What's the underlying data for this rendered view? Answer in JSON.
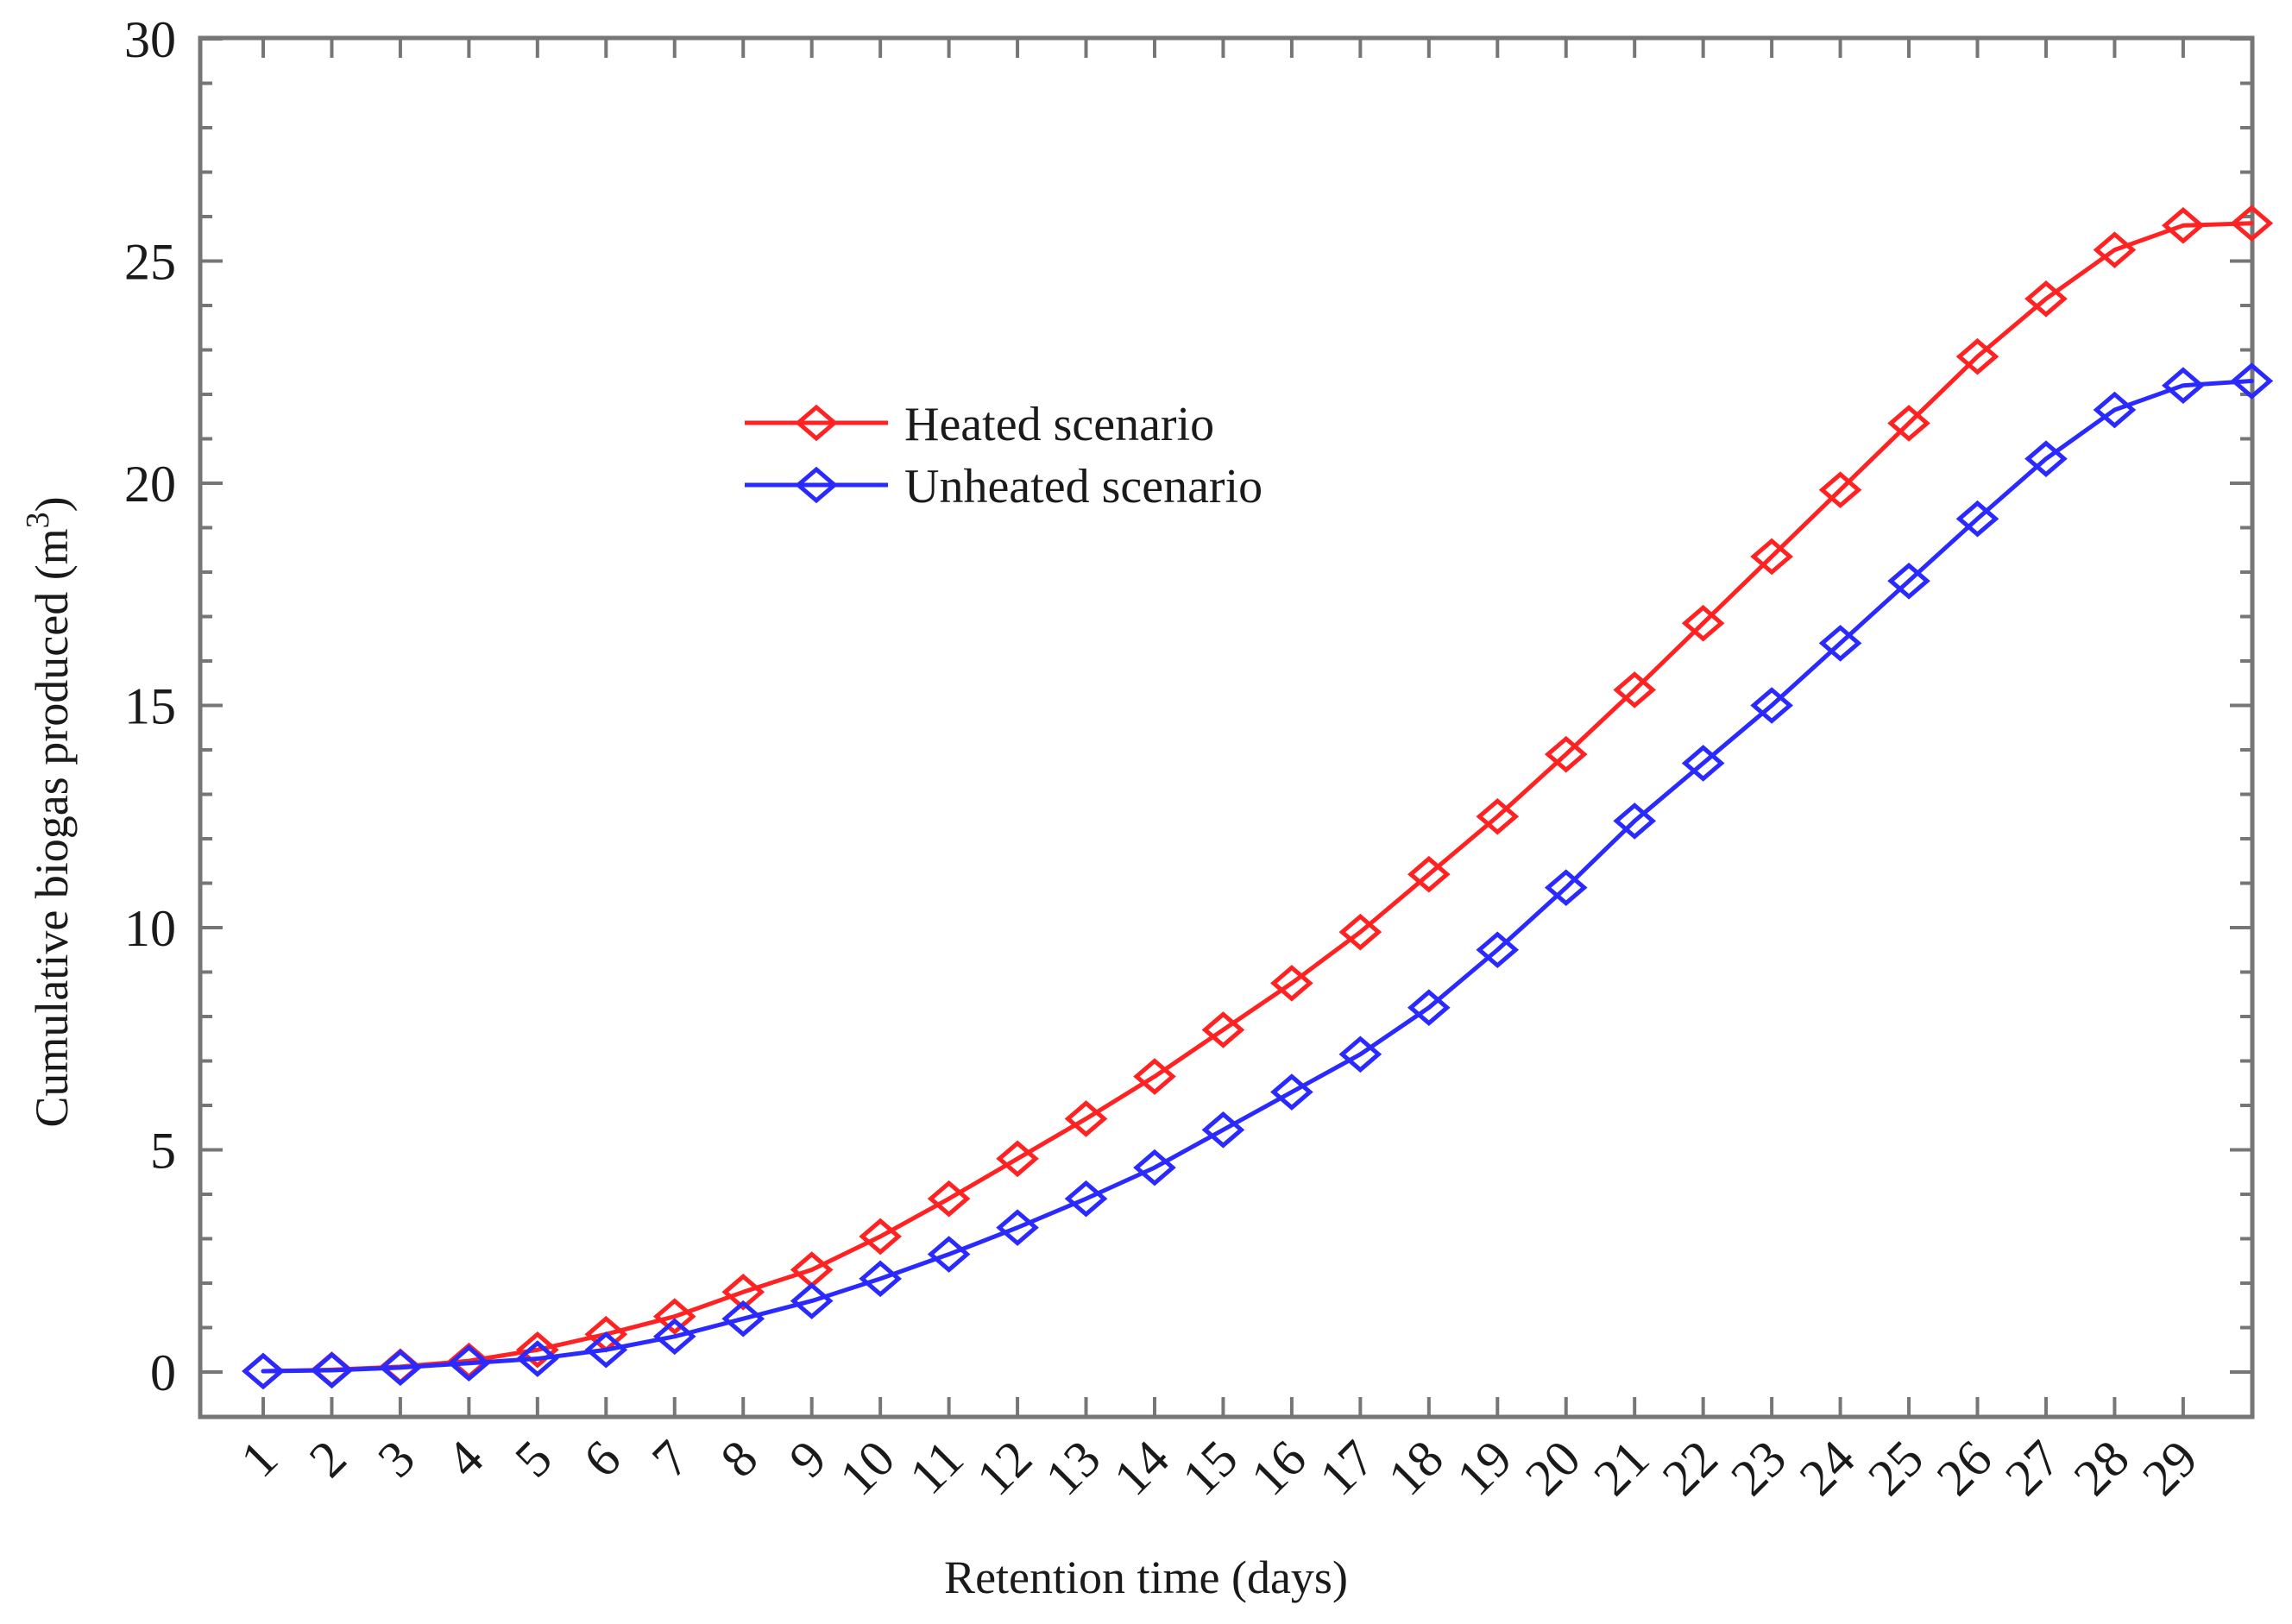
{
  "chart_data": {
    "type": "line",
    "title": "",
    "xlabel": "Retention time (days)",
    "ylabel_prefix": "Cumulative biogas produced (m",
    "ylabel_superscript": "3",
    "ylabel_suffix": ")",
    "x": [
      1,
      2,
      3,
      4,
      5,
      6,
      7,
      8,
      9,
      10,
      11,
      12,
      13,
      14,
      15,
      16,
      17,
      18,
      19,
      20,
      21,
      22,
      23,
      24,
      25,
      26,
      27,
      28,
      29,
      30
    ],
    "xtick_labels": [
      "1",
      "2",
      "3",
      "4",
      "5",
      "6",
      "7",
      "8",
      "9",
      "10",
      "11",
      "12",
      "13",
      "14",
      "15",
      "16",
      "17",
      "18",
      "19",
      "20",
      "21",
      "22",
      "23",
      "24",
      "25",
      "26",
      "27",
      "28",
      "29"
    ],
    "yticks": [
      0,
      5,
      10,
      15,
      20,
      25,
      30
    ],
    "ylim": [
      -1,
      30
    ],
    "xlim": [
      0.15,
      30.02
    ],
    "grid": false,
    "legend_position": "upper-left-inside",
    "series": [
      {
        "name": "Heated scenario",
        "color": "#ff2222",
        "marker": "diamond",
        "values": [
          0.02,
          0.05,
          0.12,
          0.25,
          0.5,
          0.85,
          1.25,
          1.8,
          2.3,
          3.05,
          3.9,
          4.8,
          5.7,
          6.65,
          7.7,
          8.75,
          9.9,
          11.2,
          12.5,
          13.9,
          15.35,
          16.85,
          18.35,
          19.85,
          21.35,
          22.85,
          24.15,
          25.25,
          25.8,
          25.85
        ]
      },
      {
        "name": "Unheated scenario",
        "color": "#2a2aff",
        "marker": "diamond",
        "values": [
          0.02,
          0.04,
          0.1,
          0.2,
          0.3,
          0.5,
          0.8,
          1.2,
          1.6,
          2.1,
          2.65,
          3.25,
          3.9,
          4.6,
          5.45,
          6.3,
          7.15,
          8.2,
          9.5,
          10.9,
          12.4,
          13.7,
          15.0,
          16.4,
          17.8,
          19.2,
          20.55,
          21.65,
          22.2,
          22.3
        ]
      }
    ],
    "colors": {
      "axis": "#767676",
      "text": "#1a1a1a",
      "background": "#ffffff"
    }
  }
}
